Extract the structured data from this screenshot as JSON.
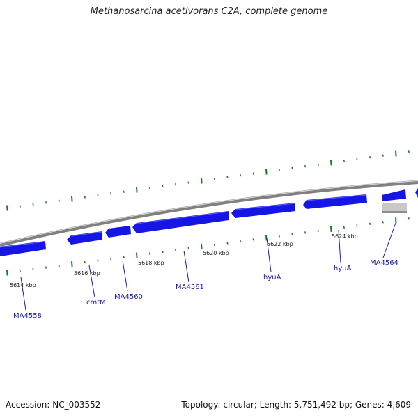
{
  "title": "Methanosarcina acetivorans C2A, complete genome",
  "footer": {
    "accession": "Accession: NC_003552",
    "topology": "Topology: circular; Length: 5,751,492 bp; Genes: 4,609"
  },
  "scale_labels": [
    "5614 kbp",
    "5616 kbp",
    "5618 kbp",
    "5620 kbp",
    "5622 kbp",
    "5624 kbp"
  ],
  "genes": [
    {
      "name": "MA4558"
    },
    {
      "name": "cmtM"
    },
    {
      "name": "MA4560"
    },
    {
      "name": "MA4561"
    },
    {
      "name": "hyuA"
    },
    {
      "name": "hyuA"
    },
    {
      "name": "MA4564"
    }
  ],
  "colors": {
    "gene": "#1515e6",
    "gene_highlight": "#4a4aff",
    "backbone": "#808080",
    "gc_ticks": "#1f7a1f",
    "pseudo": "#c8c8c8",
    "label": "#1a1aa6"
  }
}
